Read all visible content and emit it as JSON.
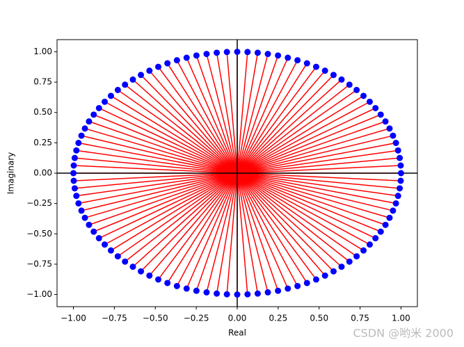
{
  "chart_data": {
    "type": "scatter",
    "x_label": "Real",
    "y_label": "Imaginary",
    "watermark": "CSDN @哟米 2000",
    "xlim": [
      -1.1,
      1.1
    ],
    "ylim": [
      -1.1,
      1.1
    ],
    "xticks": [
      {
        "value": -1,
        "label": "−1.00"
      },
      {
        "value": -0.75,
        "label": "−0.75"
      },
      {
        "value": -0.5,
        "label": "−0.50"
      },
      {
        "value": -0.25,
        "label": "−0.25"
      },
      {
        "value": 0,
        "label": "0.00"
      },
      {
        "value": 0.25,
        "label": "0.25"
      },
      {
        "value": 0.5,
        "label": "0.50"
      },
      {
        "value": 0.75,
        "label": "0.75"
      },
      {
        "value": 1,
        "label": "1.00"
      }
    ],
    "yticks": [
      {
        "value": -1,
        "label": "−1.00"
      },
      {
        "value": -0.75,
        "label": "−0.75"
      },
      {
        "value": -0.5,
        "label": "−0.50"
      },
      {
        "value": -0.25,
        "label": "−0.25"
      },
      {
        "value": 0,
        "label": "0.00"
      },
      {
        "value": 0.25,
        "label": "0.25"
      },
      {
        "value": 0.5,
        "label": "0.50"
      },
      {
        "value": 0.75,
        "label": "0.75"
      },
      {
        "value": 1,
        "label": "1.00"
      }
    ],
    "point_color": "#0000ff",
    "line_color": "#ff0000",
    "axis_line_color": "#000000",
    "x": [
      1,
      0.998,
      0.992,
      0.982,
      0.969,
      0.951,
      0.93,
      0.905,
      0.876,
      0.844,
      0.809,
      0.771,
      0.729,
      0.685,
      0.637,
      0.588,
      0.536,
      0.482,
      0.426,
      0.368,
      0.309,
      0.249,
      0.187,
      0.125,
      0.063,
      0,
      -0.063,
      -0.125,
      -0.187,
      -0.249,
      -0.309,
      -0.368,
      -0.426,
      -0.482,
      -0.536,
      -0.588,
      -0.637,
      -0.685,
      -0.729,
      -0.771,
      -0.809,
      -0.844,
      -0.876,
      -0.905,
      -0.93,
      -0.951,
      -0.969,
      -0.982,
      -0.992,
      -0.998,
      -1,
      -0.998,
      -0.992,
      -0.982,
      -0.969,
      -0.951,
      -0.93,
      -0.905,
      -0.876,
      -0.844,
      -0.809,
      -0.771,
      -0.729,
      -0.685,
      -0.637,
      -0.588,
      -0.536,
      -0.482,
      -0.426,
      -0.368,
      -0.309,
      -0.249,
      -0.187,
      -0.125,
      -0.063,
      0,
      0.063,
      0.125,
      0.187,
      0.249,
      0.309,
      0.368,
      0.426,
      0.482,
      0.536,
      0.588,
      0.637,
      0.685,
      0.729,
      0.771,
      0.809,
      0.844,
      0.876,
      0.905,
      0.93,
      0.951,
      0.969,
      0.982,
      0.992,
      0.998
    ],
    "y": [
      0,
      0.063,
      0.125,
      0.187,
      0.249,
      0.309,
      0.368,
      0.426,
      0.482,
      0.536,
      0.588,
      0.637,
      0.685,
      0.729,
      0.771,
      0.809,
      0.844,
      0.876,
      0.905,
      0.93,
      0.951,
      0.969,
      0.982,
      0.992,
      0.998,
      1,
      0.998,
      0.992,
      0.982,
      0.969,
      0.951,
      0.93,
      0.905,
      0.876,
      0.844,
      0.809,
      0.771,
      0.729,
      0.685,
      0.637,
      0.588,
      0.536,
      0.482,
      0.426,
      0.368,
      0.309,
      0.249,
      0.187,
      0.125,
      0.063,
      0,
      -0.063,
      -0.125,
      -0.187,
      -0.249,
      -0.309,
      -0.368,
      -0.426,
      -0.482,
      -0.536,
      -0.588,
      -0.637,
      -0.685,
      -0.729,
      -0.771,
      -0.809,
      -0.844,
      -0.876,
      -0.905,
      -0.93,
      -0.951,
      -0.969,
      -0.982,
      -0.992,
      -0.998,
      -1,
      -0.998,
      -0.992,
      -0.982,
      -0.969,
      -0.951,
      -0.93,
      -0.905,
      -0.876,
      -0.844,
      -0.809,
      -0.771,
      -0.729,
      -0.685,
      -0.637,
      -0.588,
      -0.536,
      -0.482,
      -0.426,
      -0.368,
      -0.309,
      -0.249,
      -0.187,
      -0.125,
      -0.063
    ]
  }
}
